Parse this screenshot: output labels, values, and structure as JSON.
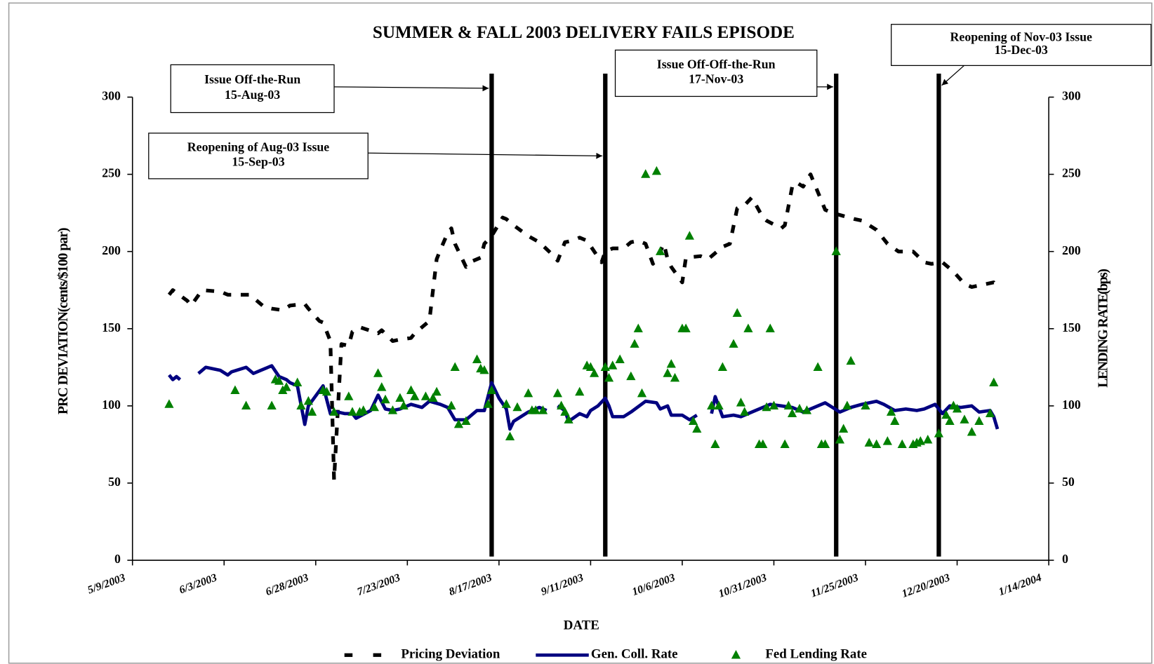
{
  "chart_data": {
    "type": "line",
    "title": "SUMMER & FALL 2003 DELIVERY FAILS EPISODE",
    "xlabel": "DATE",
    "ylabel": "PRC DEVIATION(cents/$100 par)",
    "y2label": "LENDING RATE(bps)",
    "xlim": [
      "5/9/2003",
      "1/14/2004"
    ],
    "xticks": [
      "5/9/2003",
      "6/3/2003",
      "6/28/2003",
      "7/23/2003",
      "8/17/2003",
      "9/11/2003",
      "10/6/2003",
      "10/31/2003",
      "11/25/2003",
      "12/20/2003",
      "1/14/2004"
    ],
    "ylim": [
      0,
      300
    ],
    "yticks": [
      0,
      50,
      100,
      150,
      200,
      250,
      300
    ],
    "y2lim": [
      0,
      300
    ],
    "y2ticks": [
      0,
      50,
      100,
      150,
      200,
      250,
      300
    ],
    "annotations": [
      {
        "text": [
          "Issue Off-the-Run",
          "15-Aug-03"
        ]
      },
      {
        "text": [
          "Reopening of Aug-03 Issue",
          "15-Sep-03"
        ]
      },
      {
        "text": [
          "Issue Off-Off-the-Run",
          "17-Nov-03"
        ]
      },
      {
        "text": [
          "Reopening of Nov-03 Issue",
          "15-Dec-03"
        ]
      }
    ],
    "series": [
      {
        "name": "Pricing Deviation",
        "color": "#000000",
        "style": "dashed",
        "x": [
          "5/19/2003",
          "5/20/2003",
          "5/24/2003",
          "5/25/2003",
          "5/28/2003",
          "6/2/2003",
          "6/4/2003",
          "6/10/2003",
          "6/11/2003",
          "6/14/2003",
          "6/16/2003",
          "6/19/2003",
          "6/21/2003",
          "6/25/2003",
          "6/26/2003",
          "6/29/2003",
          "6/30/2003",
          "7/2/2003",
          "7/3/2003",
          "7/5/2003",
          "7/7/2003",
          "7/8/2003",
          "7/10/2003",
          "7/15/2003",
          "7/16/2003",
          "7/19/2003",
          "7/21/2003",
          "7/24/2003",
          "7/25/2003",
          "7/29/2003",
          "7/31/2003",
          "8/1/2003",
          "8/3/2003",
          "8/4/2003",
          "8/5/2003",
          "8/8/2003",
          "8/9/2003",
          "8/12/2003",
          "8/13/2003",
          "8/15/2003",
          "8/18/2003",
          "8/19/2003",
          "8/21/2003",
          "8/25/2003",
          "8/28/2003",
          "9/1/2003",
          "9/2/2003",
          "9/4/2003",
          "9/6/2003",
          "9/8/2003",
          "9/10/2003",
          "9/14/2003",
          "9/15/2003",
          "9/17/2003",
          "9/20/2003",
          "9/22/2003",
          "9/24/2003",
          "9/26/2003",
          "9/28/2003",
          "9/29/2003",
          "10/1/2003",
          "10/2/2003",
          "10/3/2003",
          "10/6/2003",
          "10/7/2003",
          "10/11/2003",
          "10/13/2003",
          "10/17/2003",
          "10/19/2003",
          "10/21/2003",
          "10/23/2003",
          "10/25/2003",
          "10/28/2003",
          "10/29/2003",
          "11/2/2003",
          "11/3/2003",
          "11/5/2003",
          "11/6/2003",
          "11/8/2003",
          "11/10/2003",
          "11/14/2003",
          "11/16/2003",
          "11/19/2003",
          "11/22/2003",
          "11/24/2003",
          "11/28/2003",
          "12/1/2003",
          "12/4/2003",
          "12/8/2003",
          "12/11/2003",
          "12/13/2003",
          "12/16/2003",
          "12/19/2003",
          "12/22/2003",
          "12/24/2003",
          "12/30/2003",
          "12/31/2003"
        ],
        "values": [
          172,
          175,
          168,
          165,
          175,
          174,
          172,
          172,
          170,
          164,
          163,
          162,
          165,
          166,
          163,
          155,
          154,
          142,
          52,
          140,
          139,
          148,
          151,
          147,
          149,
          142,
          143,
          144,
          147,
          155,
          195,
          201,
          212,
          215,
          205,
          190,
          193,
          196,
          205,
          210,
          222,
          221,
          217,
          210,
          206,
          197,
          194,
          206,
          207,
          209,
          207,
          193,
          200,
          202,
          202,
          206,
          207,
          205,
          192,
          195,
          205,
          195,
          190,
          180,
          196,
          197,
          195,
          203,
          205,
          228,
          230,
          235,
          222,
          220,
          215,
          217,
          242,
          245,
          242,
          250,
          227,
          225,
          223,
          221,
          220,
          214,
          205,
          200,
          200,
          193,
          192,
          193,
          187,
          179,
          177,
          180,
          177
        ]
      },
      {
        "name": "Gen. Coll. Rate",
        "color": "#000080",
        "style": "line",
        "x": [
          "5/19/2003",
          "5/20/2003",
          "5/21/2003",
          "5/22/2003",
          "5/25/2003",
          "5/27/2003",
          "5/29/2003",
          "6/2/2003",
          "6/4/2003",
          "6/5/2003",
          "6/9/2003",
          "6/11/2003",
          "6/13/2003",
          "6/16/2003",
          "6/18/2003",
          "6/20/2003",
          "6/21/2003",
          "6/23/2003",
          "6/25/2003",
          "6/26/2003",
          "6/30/2003",
          "7/2/2003",
          "7/4/2003",
          "7/6/2003",
          "7/8/2003",
          "7/9/2003",
          "7/13/2003",
          "7/15/2003",
          "7/17/2003",
          "7/19/2003",
          "7/21/2003",
          "7/24/2003",
          "7/27/2003",
          "7/29/2003",
          "8/1/2003",
          "8/3/2003",
          "8/5/2003",
          "8/8/2003",
          "8/11/2003",
          "8/13/2003",
          "8/15/2003",
          "8/17/2003",
          "8/19/2003",
          "8/20/2003",
          "8/21/2003",
          "8/25/2003",
          "8/28/2003",
          "8/30/2003",
          "9/1/2003",
          "9/2/2003",
          "9/4/2003",
          "9/5/2003",
          "9/8/2003",
          "9/10/2003",
          "9/11/2003",
          "9/13/2003",
          "9/15/2003",
          "9/16/2003",
          "9/17/2003",
          "9/20/2003",
          "9/22/2003",
          "9/26/2003",
          "9/29/2003",
          "9/30/2003",
          "10/2/2003",
          "10/3/2003",
          "10/6/2003",
          "10/8/2003",
          "10/10/2003",
          "10/12/2003",
          "10/14/2003",
          "10/15/2003",
          "10/17/2003",
          "10/20/2003",
          "10/22/2003",
          "10/26/2003",
          "10/30/2003",
          "11/2/2003",
          "11/5/2003",
          "11/8/2003",
          "11/11/2003",
          "11/14/2003",
          "11/18/2003",
          "11/21/2003",
          "11/24/2003",
          "11/28/2003",
          "11/30/2003",
          "12/3/2003",
          "12/6/2003",
          "12/9/2003",
          "12/11/2003",
          "12/14/2003",
          "12/16/2003",
          "12/18/2003",
          "12/21/2003",
          "12/24/2003",
          "12/26/2003",
          "12/29/2003",
          "12/30/2003",
          "12/31/2003"
        ],
        "values": [
          120,
          117,
          119,
          117,
          null,
          121,
          125,
          123,
          120,
          122,
          125,
          121,
          123,
          126,
          119,
          117,
          115,
          113,
          88,
          100,
          113,
          95,
          96,
          95,
          95,
          92,
          97,
          107,
          98,
          97,
          98,
          101,
          99,
          103,
          101,
          99,
          91,
          91,
          97,
          97,
          115,
          105,
          98,
          85,
          90,
          96,
          99,
          97,
          null,
          100,
          97,
          90,
          95,
          93,
          97,
          100,
          105,
          100,
          93,
          93,
          96,
          103,
          102,
          98,
          100,
          94,
          94,
          91,
          94,
          null,
          95,
          106,
          93,
          94,
          93,
          97,
          101,
          100,
          99,
          96,
          99,
          102,
          96,
          99,
          101,
          103,
          101,
          97,
          98,
          97,
          98,
          101,
          95,
          100,
          99,
          100,
          96,
          97,
          93,
          85
        ]
      },
      {
        "name": "Fed Lending Rate",
        "color": "#008000",
        "style": "marker",
        "axis": "y2",
        "x": [
          "5/19/2003",
          "6/6/2003",
          "6/9/2003",
          "6/16/2003",
          "6/17/2003",
          "6/18/2003",
          "6/19/2003",
          "6/20/2003",
          "6/23/2003",
          "6/24/2003",
          "6/26/2003",
          "6/27/2003",
          "6/30/2003",
          "7/1/2003",
          "7/3/2003",
          "7/7/2003",
          "7/8/2003",
          "7/10/2003",
          "7/11/2003",
          "7/14/2003",
          "7/15/2003",
          "7/16/2003",
          "7/17/2003",
          "7/19/2003",
          "7/21/2003",
          "7/22/2003",
          "7/24/2003",
          "7/25/2003",
          "7/28/2003",
          "7/30/2003",
          "7/31/2003",
          "8/4/2003",
          "8/5/2003",
          "8/6/2003",
          "8/8/2003",
          "8/11/2003",
          "8/12/2003",
          "8/13/2003",
          "8/14/2003",
          "8/15/2003",
          "8/19/2003",
          "8/20/2003",
          "8/22/2003",
          "8/25/2003",
          "8/26/2003",
          "8/27/2003",
          "8/29/2003",
          "9/2/2003",
          "9/3/2003",
          "9/4/2003",
          "9/5/2003",
          "9/8/2003",
          "9/10/2003",
          "9/11/2003",
          "9/12/2003",
          "9/15/2003",
          "9/16/2003",
          "9/17/2003",
          "9/19/2003",
          "9/22/2003",
          "9/23/2003",
          "9/24/2003",
          "9/25/2003",
          "9/26/2003",
          "9/29/2003",
          "9/30/2003",
          "10/2/2003",
          "10/3/2003",
          "10/4/2003",
          "10/6/2003",
          "10/7/2003",
          "10/8/2003",
          "10/9/2003",
          "10/10/2003",
          "10/14/2003",
          "10/15/2003",
          "10/16/2003",
          "10/17/2003",
          "10/20/2003",
          "10/21/2003",
          "10/22/2003",
          "10/23/2003",
          "10/24/2003",
          "10/27/2003",
          "10/28/2003",
          "10/29/2003",
          "10/30/2003",
          "10/31/2003",
          "11/3/2003",
          "11/4/2003",
          "11/5/2003",
          "11/7/2003",
          "11/9/2003",
          "11/12/2003",
          "11/13/2003",
          "11/14/2003",
          "11/17/2003",
          "11/18/2003",
          "11/19/2003",
          "11/20/2003",
          "11/21/2003",
          "11/25/2003",
          "11/26/2003",
          "11/28/2003",
          "12/1/2003",
          "12/2/2003",
          "12/3/2003",
          "12/5/2003",
          "12/8/2003",
          "12/9/2003",
          "12/10/2003",
          "12/12/2003",
          "12/15/2003",
          "12/17/2003",
          "12/18/2003",
          "12/19/2003",
          "12/20/2003",
          "12/22/2003",
          "12/24/2003",
          "12/26/2003",
          "12/29/2003",
          "12/30/2003"
        ],
        "values": [
          101,
          110,
          100,
          100,
          117,
          116,
          110,
          112,
          115,
          100,
          103,
          96,
          110,
          109,
          96,
          106,
          96,
          96,
          97,
          99,
          121,
          112,
          104,
          97,
          105,
          100,
          110,
          106,
          106,
          105,
          109,
          100,
          125,
          88,
          90,
          130,
          124,
          123,
          101,
          110,
          101,
          80,
          99,
          108,
          97,
          97,
          97,
          108,
          100,
          96,
          91,
          109,
          126,
          125,
          121,
          125,
          118,
          126,
          130,
          119,
          140,
          150,
          108,
          250,
          252,
          200,
          121,
          127,
          118,
          150,
          150,
          210,
          90,
          85,
          100,
          75,
          100,
          125,
          140,
          160,
          102,
          96,
          150,
          75,
          75,
          99,
          150,
          100,
          75,
          100,
          95,
          98,
          97,
          125,
          75,
          75,
          200,
          78,
          85,
          100,
          129,
          100,
          76,
          75,
          77,
          96,
          90,
          75,
          75,
          76,
          77,
          78,
          82,
          94,
          90,
          100,
          98,
          91,
          83,
          90,
          95,
          115
        ]
      }
    ]
  }
}
